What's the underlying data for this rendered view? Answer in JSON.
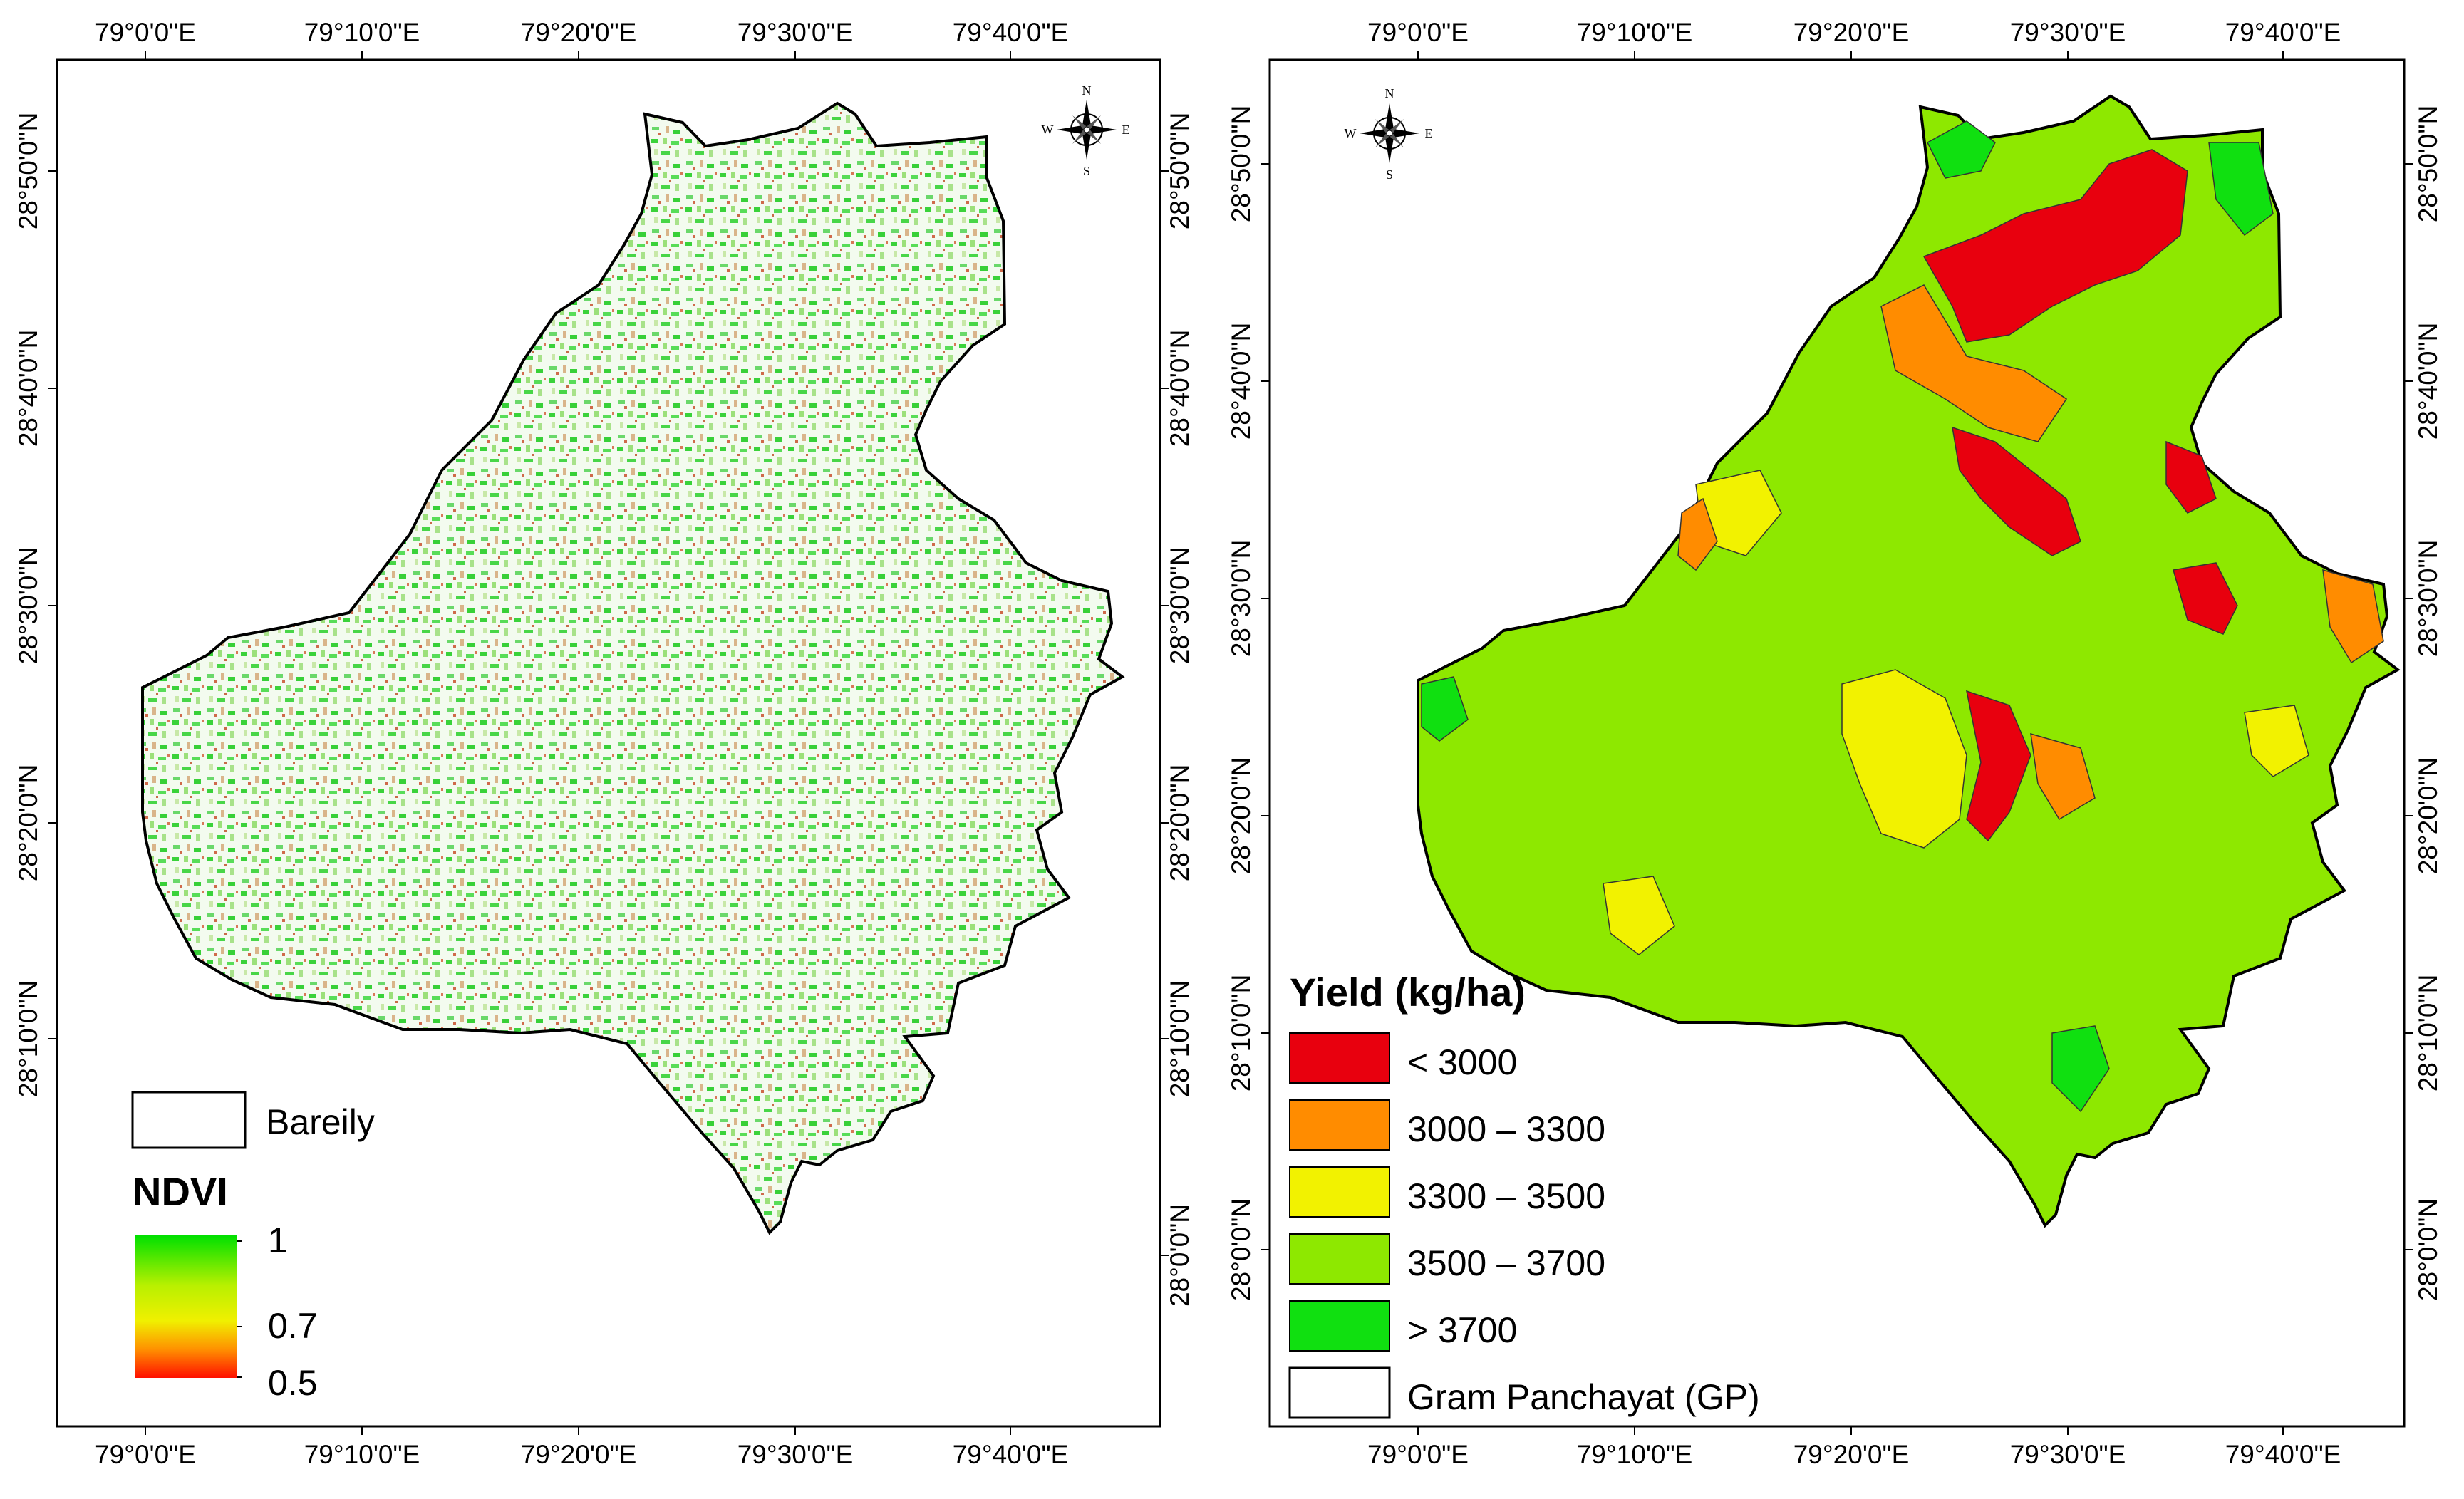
{
  "maps": [
    {
      "id": "ndvi",
      "top_ticks": [
        "79°0'0\"E",
        "79°10'0\"E",
        "79°20'0\"E",
        "79°30'0\"E",
        "79°40'0\"E"
      ],
      "bottom_ticks": [
        "79°0'0\"E",
        "79°10'0\"E",
        "79°20'0\"E",
        "79°30'0\"E",
        "79°40'0\"E"
      ],
      "left_ticks": [
        "28°50'0\"N",
        "28°40'0\"N",
        "28°30'0\"N",
        "28°20'0\"N",
        "28°10'0\"N"
      ],
      "right_ticks": [
        "28°50'0\"N",
        "28°40'0\"N",
        "28°30'0\"N",
        "28°20'0\"N",
        "28°10'0\"N",
        "28°0'0\"N"
      ],
      "compass": {
        "n": "N",
        "s": "S",
        "e": "E",
        "w": "W"
      },
      "legend": {
        "boundary_label": "Bareily",
        "title": "NDVI",
        "scale_labels": [
          "1",
          "0.7",
          "0.5"
        ],
        "gradient_colors": [
          "#00e000",
          "#b8f000",
          "#f0f000",
          "#ff9000",
          "#ff1000"
        ]
      }
    },
    {
      "id": "yield",
      "top_ticks": [
        "79°0'0\"E",
        "79°10'0\"E",
        "79°20'0\"E",
        "79°30'0\"E",
        "79°40'0\"E"
      ],
      "bottom_ticks": [
        "79°0'0\"E",
        "79°10'0\"E",
        "79°20'0\"E",
        "79°30'0\"E",
        "79°40'0\"E"
      ],
      "left_ticks": [
        "28°50'0\"N",
        "28°40'0\"N",
        "28°30'0\"N",
        "28°20'0\"N",
        "28°10'0\"N",
        "28°0'0\"N"
      ],
      "right_ticks": [
        "28°50'0\"N",
        "28°40'0\"N",
        "28°30'0\"N",
        "28°20'0\"N",
        "28°10'0\"N",
        "28°0'0\"N"
      ],
      "compass": {
        "n": "N",
        "s": "S",
        "e": "E",
        "w": "W"
      },
      "legend": {
        "title": "Yield (kg/ha)",
        "classes": [
          {
            "label": "< 3000",
            "color": "#e8000e"
          },
          {
            "label": "3000 – 3300",
            "color": "#ff8c00"
          },
          {
            "label": "3300 – 3500",
            "color": "#f2f200"
          },
          {
            "label": "3500 – 3700",
            "color": "#8ee800"
          },
          {
            "label": "> 3700",
            "color": "#10e010"
          }
        ],
        "boundary_label": "Gram Panchayat (GP)"
      }
    }
  ]
}
